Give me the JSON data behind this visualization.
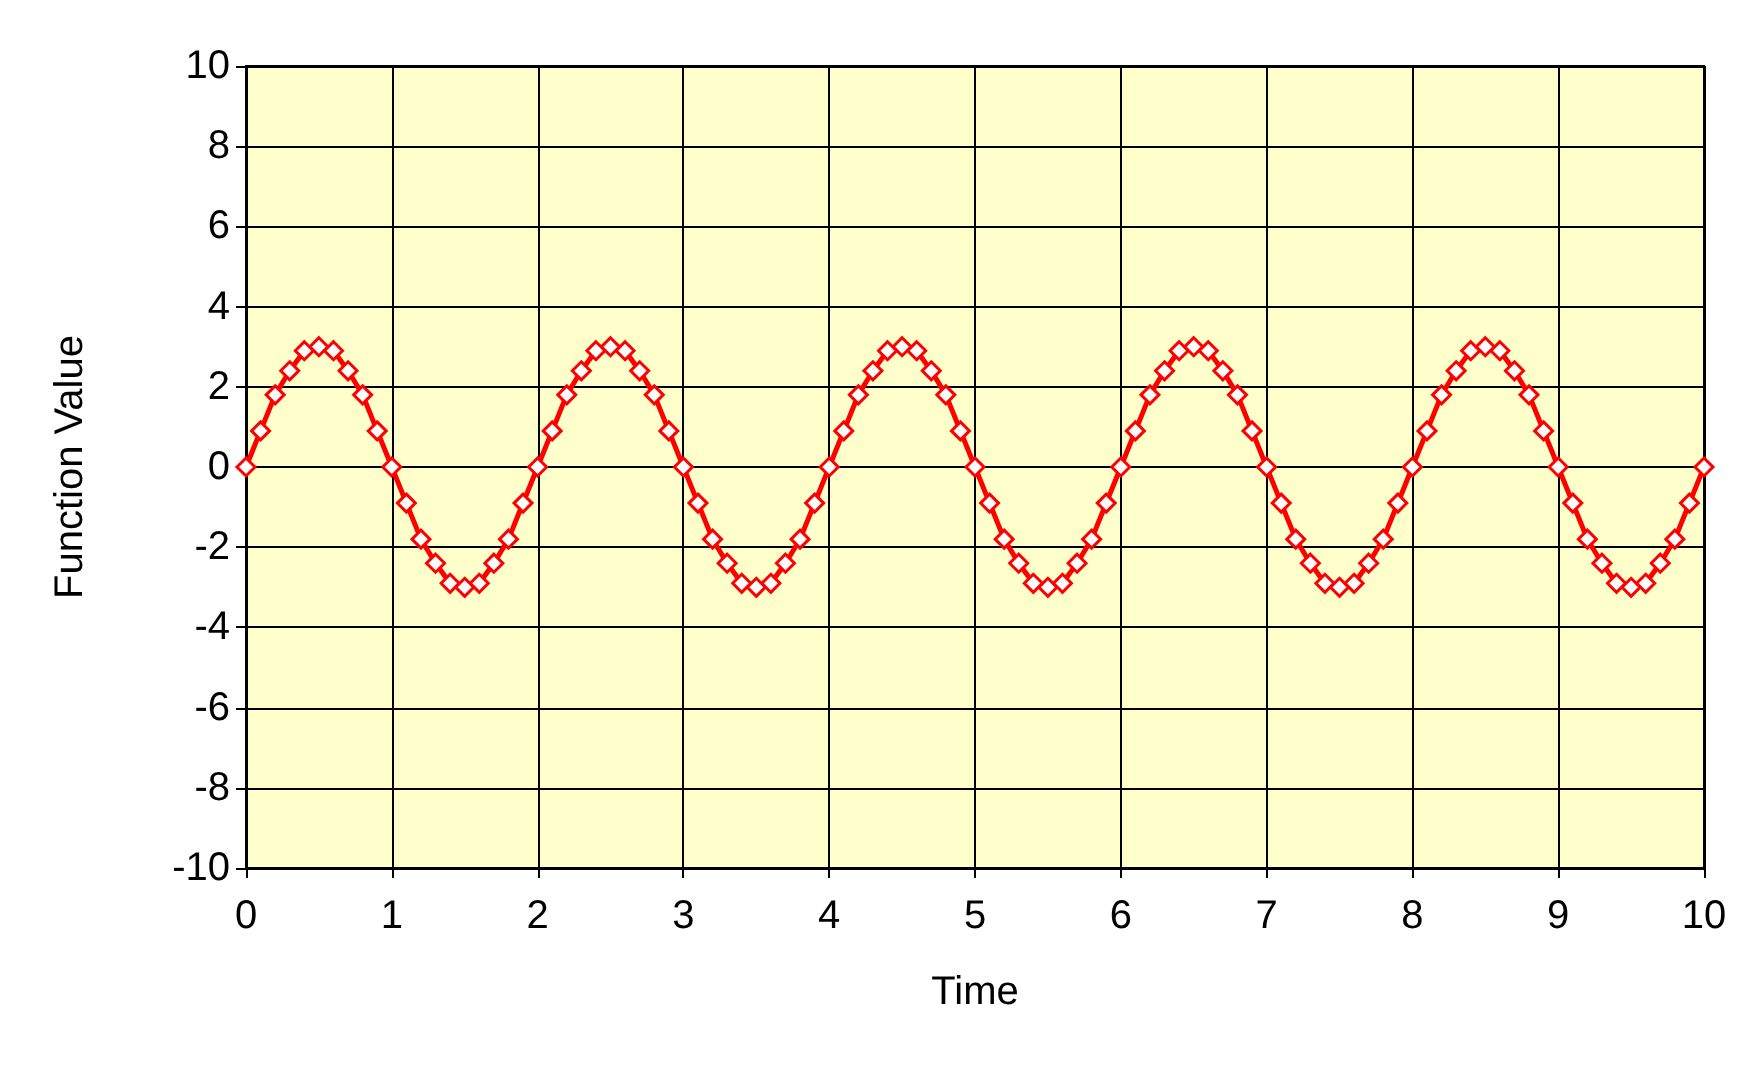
{
  "chart_data": {
    "type": "line",
    "xlabel": "Time",
    "ylabel": "Function Value",
    "x": [
      0,
      0.1,
      0.2,
      0.3,
      0.4,
      0.5,
      0.6,
      0.7,
      0.8,
      0.9,
      1,
      1.1,
      1.2,
      1.3,
      1.4,
      1.5,
      1.6,
      1.7,
      1.8,
      1.9,
      2,
      2.1,
      2.2,
      2.3,
      2.4,
      2.5,
      2.6,
      2.7,
      2.8,
      2.9,
      3,
      3.1,
      3.2,
      3.3,
      3.4,
      3.5,
      3.6,
      3.7,
      3.8,
      3.9,
      4,
      4.1,
      4.2,
      4.3,
      4.4,
      4.5,
      4.6,
      4.7,
      4.8,
      4.9,
      5,
      5.1,
      5.2,
      5.3,
      5.4,
      5.5,
      5.6,
      5.7,
      5.8,
      5.9,
      6,
      6.1,
      6.2,
      6.3,
      6.4,
      6.5,
      6.6,
      6.7,
      6.8,
      6.9,
      7,
      7.1,
      7.2,
      7.3,
      7.4,
      7.5,
      7.6,
      7.7,
      7.8,
      7.9,
      8,
      8.1,
      8.2,
      8.3,
      8.4,
      8.5,
      8.6,
      8.7,
      8.8,
      8.9,
      9,
      9.1,
      9.2,
      9.3,
      9.4,
      9.5,
      9.6,
      9.7,
      9.8,
      9.9,
      10
    ],
    "series": [
      {
        "color": "#ff0000",
        "values": [
          0,
          0.9,
          1.8,
          2.4,
          2.9,
          3,
          2.9,
          2.4,
          1.8,
          0.9,
          0,
          -0.9,
          -1.8,
          -2.4,
          -2.9,
          -3,
          -2.9,
          -2.4,
          -1.8,
          -0.9,
          0,
          0.9,
          1.8,
          2.4,
          2.9,
          3,
          2.9,
          2.4,
          1.8,
          0.9,
          0,
          -0.9,
          -1.8,
          -2.4,
          -2.9,
          -3,
          -2.9,
          -2.4,
          -1.8,
          -0.9,
          0,
          0.9,
          1.8,
          2.4,
          2.9,
          3,
          2.9,
          2.4,
          1.8,
          0.9,
          0,
          -0.9,
          -1.8,
          -2.4,
          -2.9,
          -3,
          -2.9,
          -2.4,
          -1.8,
          -0.9,
          0,
          0.9,
          1.8,
          2.4,
          2.9,
          3,
          2.9,
          2.4,
          1.8,
          0.9,
          0,
          -0.9,
          -1.8,
          -2.4,
          -2.9,
          -3,
          -2.9,
          -2.4,
          -1.8,
          -0.9,
          0,
          0.9,
          1.8,
          2.4,
          2.9,
          3,
          2.9,
          2.4,
          1.8,
          0.9,
          0,
          -0.9,
          -1.8,
          -2.4,
          -2.9,
          -3,
          -2.9,
          -2.4,
          -1.8,
          -0.9,
          0
        ]
      }
    ],
    "xlim": [
      0,
      10
    ],
    "xticks": [
      0,
      1,
      2,
      3,
      4,
      5,
      6,
      7,
      8,
      9,
      10
    ],
    "ylim": [
      -10,
      10
    ],
    "yticks": [
      -10,
      -8,
      -6,
      -4,
      -2,
      0,
      2,
      4,
      6,
      8,
      10
    ],
    "grid": true,
    "marker": "diamond",
    "line_style": "solid"
  }
}
